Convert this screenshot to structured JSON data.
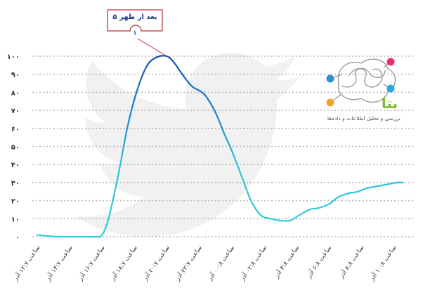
{
  "chart_data": {
    "type": "line",
    "title": "",
    "xlabel": "",
    "ylabel": "",
    "ylim": [
      0,
      100
    ],
    "yticks": [
      "۰",
      "۱۰",
      "۲۰",
      "۳۰",
      "۴۰",
      "۵۰",
      "۶۰",
      "۷۰",
      "۸۰",
      "۹۰",
      "۱۰۰"
    ],
    "xticks": [
      "ساعت ۱۲:۷ آذر",
      "ساعت ۱۴:۷ آذر",
      "ساعت ۱۶:۷ آذر",
      "ساعت ۱۸:۷ آذر",
      "ساعت ۲۰:۷ آذر",
      "ساعت ۲۲:۷ آذر",
      "ساعت ۰۰:۸ آذر",
      "ساعت ۰۲:۸ آذر",
      "ساعت ۴:۸ آذر",
      "ساعت ۶:۸ آذر",
      "ساعت ۸:۸ آذر",
      "ساعت ۱۰:۸ آذر"
    ],
    "grid": true,
    "legend": "none",
    "colors": {
      "low": "#30d0d8",
      "high": "#1550b0"
    },
    "series": [
      {
        "x": [
          0,
          0.3,
          0.6,
          1,
          1.4,
          1.8,
          2.0,
          2.2,
          2.5,
          2.8,
          3.1,
          3.4,
          3.7,
          4.0,
          4.2,
          4.4,
          4.6,
          4.8,
          5.0,
          5.2,
          5.5,
          5.8,
          6.0,
          6.3,
          6.6,
          6.9,
          7.2,
          7.5,
          7.8,
          8.1,
          8.4,
          8.7,
          9.0,
          9.3,
          9.6,
          9.9,
          10.2,
          10.5,
          10.8,
          11.1,
          11.3
        ],
        "values": [
          1,
          0.5,
          0,
          0,
          0,
          0,
          1,
          10,
          34,
          62,
          82,
          95,
          99.5,
          100,
          97,
          92,
          87,
          83,
          81,
          78,
          69,
          56,
          48,
          34,
          20,
          12,
          10,
          9,
          9,
          12,
          15,
          16,
          18,
          22,
          24,
          25,
          27,
          28,
          29,
          30,
          30
        ]
      }
    ],
    "annotations": [
      {
        "text": "۵ بعد از ظهر",
        "value_label": "۱",
        "x": 4.0,
        "y": 100
      }
    ]
  },
  "watermark": {
    "icon": "twitter-bird-icon",
    "brand": "بتا",
    "tagline": "بررسی و تحلیل اطلاعات و داده‌ها",
    "dot_colors": [
      "#e8306a",
      "#2f8fd0",
      "#2aa8e0",
      "#f5a42a"
    ]
  }
}
